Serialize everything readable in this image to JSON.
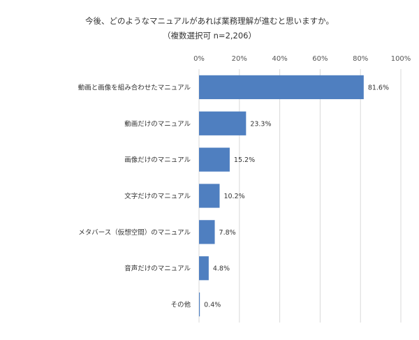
{
  "chart_data": {
    "type": "bar",
    "orientation": "horizontal",
    "title": "今後、どのようなマニュアルがあれば業務理解が進むと思いますか。",
    "subtitle": "（複数選択可 n=2,206）",
    "categories": [
      "動画と画像を組み合わせたマニュアル",
      "動画だけのマニュアル",
      "画像だけのマニュアル",
      "文字だけのマニュアル",
      "メタバース（仮想空間）のマニュアル",
      "音声だけのマニュアル",
      "その他"
    ],
    "values": [
      81.6,
      23.3,
      15.2,
      10.2,
      7.8,
      4.8,
      0.4
    ],
    "value_labels": [
      "81.6%",
      "23.3%",
      "15.2%",
      "10.2%",
      "7.8%",
      "4.8%",
      "0.4%"
    ],
    "xlim": [
      0,
      100
    ],
    "x_ticks": [
      "0%",
      "20%",
      "40%",
      "60%",
      "80%",
      "100%"
    ],
    "x_tick_values": [
      0,
      20,
      40,
      60,
      80,
      100
    ],
    "grid": true,
    "axis_position": "top",
    "bar_color": "#4f7fc0"
  }
}
